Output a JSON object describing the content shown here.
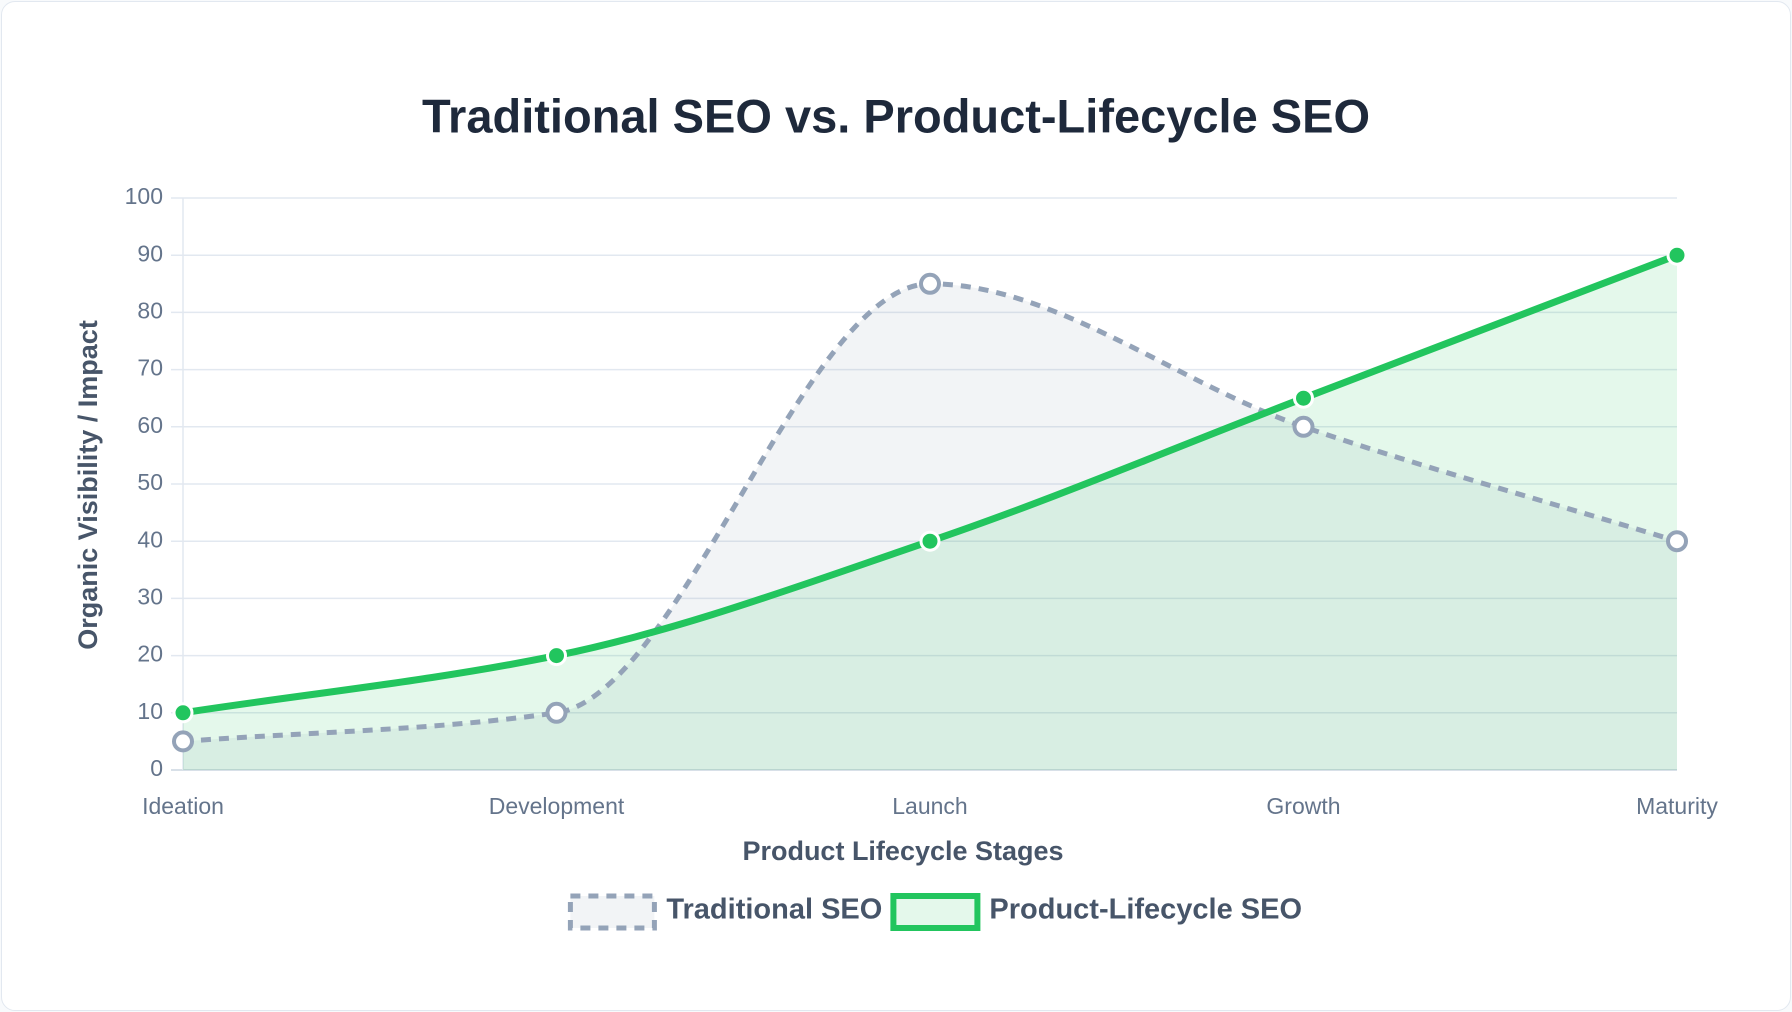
{
  "chart_data": {
    "type": "line",
    "title": "Traditional SEO vs. Product-Lifecycle SEO",
    "x_label": "Product Lifecycle Stages",
    "y_label": "Organic Visibility / Impact",
    "categories": [
      "Ideation",
      "Development",
      "Launch",
      "Growth",
      "Maturity"
    ],
    "series": [
      {
        "name": "Traditional SEO",
        "color": "#94a3b8",
        "line_style": "dashed",
        "point_style": "hollow",
        "fill": true,
        "values": [
          5,
          10,
          85,
          60,
          40
        ]
      },
      {
        "name": "Product-Lifecycle SEO",
        "color": "#22c55e",
        "line_style": "solid",
        "point_style": "filled",
        "fill": true,
        "values": [
          10,
          20,
          40,
          65,
          90
        ]
      }
    ],
    "ylim": [
      0,
      100
    ],
    "yticks": [
      0,
      10,
      20,
      30,
      40,
      50,
      60,
      70,
      80,
      90,
      100
    ],
    "grid": true,
    "legend": "bottom"
  }
}
